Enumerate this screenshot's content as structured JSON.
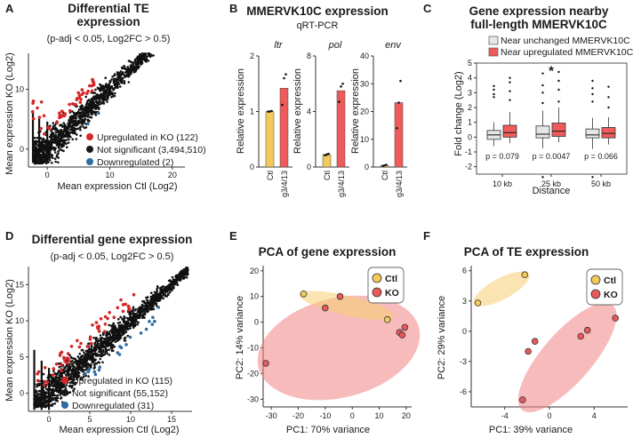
{
  "panels": {
    "A": {
      "letter": "A",
      "title1": "Differential TE",
      "title2": "expression",
      "subtitle": "(p-adj < 0.05, Log2FC > 0.5)",
      "xlabel": "Mean expression Ctl (Log2)",
      "ylabel": "Mean expression KO (Log2)",
      "xticks": [
        "0",
        "10",
        "20"
      ],
      "yticks": [
        "0",
        "10"
      ],
      "legend": [
        {
          "label": "Upregulated in KO (122)",
          "color": "#d62728"
        },
        {
          "label": "Not significant (3,494,510)",
          "color": "#1a1a1a"
        },
        {
          "label": "Downregulated (2)",
          "color": "#2e6da4"
        }
      ]
    },
    "B": {
      "letter": "B",
      "title": "MMERVK10C expression",
      "subtitle": "qRT-PCR",
      "ylabel": "Relative expression",
      "categories": [
        "Ctl",
        "g3/4/13"
      ]
    },
    "C": {
      "letter": "C",
      "title1": "Gene expression nearby",
      "title2": "full-length MMERVK10C",
      "ylabel": "Fold change (Log2)",
      "xlabel": "Distance",
      "star": "*",
      "legend": [
        {
          "label": "Near unchanged MMERVK10C",
          "color": "#e6e6e6"
        },
        {
          "label": "Near upregulated MMERVK10C",
          "color": "#ef5b5b"
        }
      ]
    },
    "D": {
      "letter": "D",
      "title": "Differential gene expression",
      "subtitle": "(p-adj < 0.05, Log2FC > 0.5)",
      "xlabel": "Mean expression Ctl (Log2)",
      "ylabel": "Mean expression KO (Log2)",
      "xticks": [
        "0",
        "5",
        "10",
        "15"
      ],
      "yticks": [
        "0",
        "5",
        "10",
        "15"
      ],
      "legend": [
        {
          "label": "Upregulated in KO (115)",
          "color": "#d62728"
        },
        {
          "label": "Not significant (55,152)",
          "color": "#1a1a1a"
        },
        {
          "label": "Downregulated (31)",
          "color": "#2e6da4"
        }
      ]
    },
    "E": {
      "letter": "E",
      "title": "PCA of gene expression",
      "xlabel": "PC1: 70% variance",
      "ylabel": "PC2: 14% variance",
      "legend": [
        {
          "label": "Ctl",
          "color": "#f3c95c"
        },
        {
          "label": "KO",
          "color": "#e85a5a"
        }
      ]
    },
    "F": {
      "letter": "F",
      "title": "PCA of TE expression",
      "xlabel": "PC1: 39% variance",
      "ylabel": "PC2: 29% variance",
      "legend": [
        {
          "label": "Ctl",
          "color": "#f3c95c"
        },
        {
          "label": "KO",
          "color": "#e85a5a"
        }
      ]
    }
  },
  "chart_data": [
    {
      "id": "A",
      "type": "scatter",
      "title": "Differential TE expression (p-adj < 0.05, Log2FC > 0.5)",
      "xlabel": "Mean expression Ctl (Log2)",
      "ylabel": "Mean expression KO (Log2)",
      "xlim": [
        -3,
        22
      ],
      "ylim": [
        -3,
        16
      ],
      "series": [
        {
          "name": "Upregulated in KO",
          "count": 122
        },
        {
          "name": "Not significant",
          "count": 3494510
        },
        {
          "name": "Downregulated",
          "count": 2
        }
      ]
    },
    {
      "id": "B",
      "type": "bar",
      "title": "MMERVK10C expression",
      "subtitle": "qRT-PCR",
      "ylabel": "Relative expression",
      "categories": [
        "Ctl",
        "g3/4/13"
      ],
      "colors": [
        "#f3c95c",
        "#ef5b5b"
      ],
      "subplots": [
        {
          "name": "ltr",
          "ylim": [
            0,
            2
          ],
          "yticks": [
            0,
            1,
            2
          ],
          "values": [
            1.0,
            1.42
          ],
          "points": [
            [
              1.0,
              1.0,
              1.01
            ],
            [
              1.12,
              1.6,
              1.67
            ]
          ]
        },
        {
          "name": "pol",
          "ylim": [
            0,
            8
          ],
          "yticks": [
            0,
            4,
            8
          ],
          "values": [
            0.9,
            5.5
          ],
          "points": [
            [
              0.85,
              0.9,
              0.95
            ],
            [
              4.7,
              5.8,
              6.0
            ]
          ]
        },
        {
          "name": "env",
          "ylim": [
            0,
            40
          ],
          "yticks": [
            0,
            10,
            20,
            30,
            40
          ],
          "values": [
            0.6,
            23.2
          ],
          "points": [
            [
              0.4,
              0.6,
              0.8
            ],
            [
              14.0,
              23.2,
              31.0
            ]
          ]
        }
      ]
    },
    {
      "id": "C",
      "type": "box",
      "title": "Gene expression nearby full-length MMERVK10C",
      "xlabel": "Distance",
      "ylabel": "Fold change (Log2)",
      "ylim": [
        -2.5,
        5
      ],
      "yticks": [
        -2,
        -1,
        0,
        1,
        2,
        3,
        4,
        5
      ],
      "categories": [
        "10 kb",
        "25 kb",
        "50 kb"
      ],
      "pvalues": [
        "p = 0.079",
        "p = 0.0047",
        "p = 0.066"
      ],
      "significant": [
        false,
        true,
        false
      ],
      "series": [
        {
          "name": "Near unchanged MMERVK10C",
          "boxes": [
            [
              -0.6,
              -0.15,
              0.15,
              0.45,
              1.0
            ],
            [
              -0.75,
              -0.05,
              0.2,
              0.75,
              1.8
            ],
            [
              -0.8,
              -0.05,
              0.15,
              0.55,
              1.3
            ]
          ],
          "outliers": [
            [
              2.7,
              2.9,
              3.2,
              3.45
            ],
            [
              2.3,
              3.0,
              3.5,
              4.3,
              -2.7
            ],
            [
              2.4,
              2.9,
              3.3,
              3.8,
              -2.7
            ]
          ]
        },
        {
          "name": "Near upregulated MMERVK10C",
          "boxes": [
            [
              -0.4,
              0.0,
              0.3,
              0.8,
              1.7
            ],
            [
              -0.35,
              0.05,
              0.4,
              0.95,
              2.0
            ],
            [
              -0.5,
              -0.05,
              0.25,
              0.65,
              1.35
            ]
          ],
          "outliers": [
            [
              2.5,
              3.1,
              3.7,
              4.0
            ],
            [
              2.4,
              3.2,
              3.8,
              4.4
            ],
            [
              2.0,
              2.7,
              3.4
            ]
          ]
        }
      ]
    },
    {
      "id": "D",
      "type": "scatter",
      "title": "Differential gene expression (p-adj < 0.05, Log2FC > 0.5)",
      "xlabel": "Mean expression Ctl (Log2)",
      "ylabel": "Mean expression KO (Log2)",
      "xlim": [
        -2.5,
        17.5
      ],
      "ylim": [
        -2.5,
        17.5
      ],
      "series": [
        {
          "name": "Upregulated in KO",
          "count": 115
        },
        {
          "name": "Not significant",
          "count": 55152
        },
        {
          "name": "Downregulated",
          "count": 31
        }
      ]
    },
    {
      "id": "E",
      "type": "scatter",
      "title": "PCA of gene expression",
      "xlabel": "PC1: 70% variance",
      "ylabel": "PC2: 14% variance",
      "xlim": [
        -33,
        22
      ],
      "ylim": [
        -33,
        22
      ],
      "xticks": [
        -30,
        -20,
        -10,
        0,
        10,
        20
      ],
      "yticks": [
        20,
        10,
        0,
        -10,
        -20,
        -30
      ],
      "series": [
        {
          "name": "Ctl",
          "points": [
            [
              -18,
              11
            ],
            [
              13,
              1
            ]
          ]
        },
        {
          "name": "KO",
          "points": [
            [
              -4.5,
              10
            ],
            [
              -10,
              5.5
            ],
            [
              17.5,
              -4
            ],
            [
              18.5,
              -5
            ],
            [
              19.5,
              -2
            ],
            [
              -32,
              -16
            ]
          ]
        }
      ]
    },
    {
      "id": "F",
      "type": "scatter",
      "title": "PCA of TE expression",
      "xlabel": "PC1: 39% variance",
      "ylabel": "PC2: 29% variance",
      "xlim": [
        -7,
        7
      ],
      "ylim": [
        -7.5,
        6.5
      ],
      "xticks": [
        -4,
        0,
        4
      ],
      "yticks": [
        6,
        3,
        0,
        -3,
        -6
      ],
      "series": [
        {
          "name": "Ctl",
          "points": [
            [
              -6.4,
              2.8
            ],
            [
              -2.2,
              5.6
            ]
          ]
        },
        {
          "name": "KO",
          "points": [
            [
              -1.9,
              -2.0
            ],
            [
              -1.3,
              -1.0
            ],
            [
              2.8,
              -0.5
            ],
            [
              3.4,
              0.1
            ],
            [
              5.9,
              1.3
            ],
            [
              -2.4,
              -6.8
            ]
          ]
        }
      ]
    }
  ]
}
